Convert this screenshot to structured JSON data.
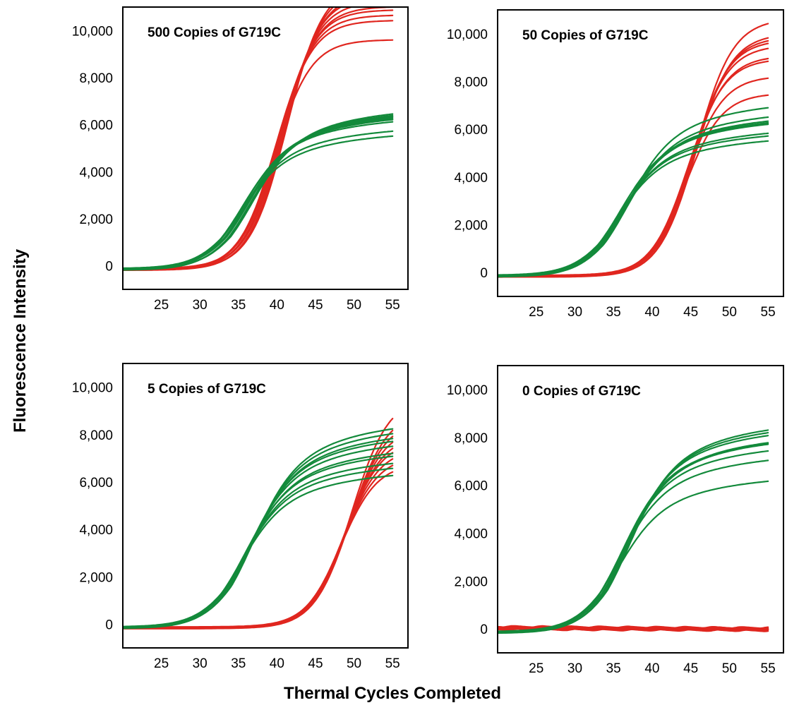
{
  "figure": {
    "ylabel": "Fluorescence Intensity",
    "xlabel": "Thermal Cycles Completed"
  },
  "colors": {
    "mutant": "#e0261f",
    "control": "#138a3b"
  },
  "chart_data": [
    {
      "type": "line",
      "title": "500 Copies of G719C",
      "xlim": [
        20,
        57
      ],
      "ylim": [
        -1000,
        11000
      ],
      "xticks": [
        "25",
        "30",
        "35",
        "40",
        "45",
        "50",
        "55"
      ],
      "yticks": [
        "0",
        "2,000",
        "4,000",
        "6,000",
        "8,000",
        "10,000"
      ],
      "series": [
        {
          "color": "red",
          "midpoint": 40.5,
          "plateaus": [
            9800,
            10600,
            10800,
            11000,
            11200,
            11400,
            11600,
            11800,
            12000,
            12200
          ]
        },
        {
          "color": "green",
          "midpoint": 35.2,
          "plateaus": [
            6000,
            6200,
            6600,
            6700,
            6750,
            6800,
            6850,
            6900,
            6950,
            7000
          ]
        }
      ]
    },
    {
      "type": "line",
      "title": "50 Copies of G719C",
      "xlim": [
        20,
        57
      ],
      "ylim": [
        -1000,
        11000
      ],
      "xticks": [
        "25",
        "30",
        "35",
        "40",
        "45",
        "50",
        "55"
      ],
      "yticks": [
        "0",
        "2,000",
        "4,000",
        "6,000",
        "8,000",
        "10,000"
      ],
      "series": [
        {
          "color": "red",
          "midpoint": 45.0,
          "plateaus": [
            7700,
            8400,
            9100,
            9200,
            9700,
            9900,
            10000,
            10200,
            10800
          ]
        },
        {
          "color": "green",
          "midpoint": 35.3,
          "plateaus": [
            6000,
            6200,
            6300,
            6700,
            6750,
            6800,
            6850,
            7100,
            7500
          ]
        }
      ]
    },
    {
      "type": "line",
      "title": "5 Copies of G719C",
      "xlim": [
        20,
        57
      ],
      "ylim": [
        -1000,
        11000
      ],
      "xticks": [
        "25",
        "30",
        "35",
        "40",
        "45",
        "50",
        "55"
      ],
      "yticks": [
        "0",
        "2,000",
        "4,000",
        "6,000",
        "8,000",
        "10,000"
      ],
      "series": [
        {
          "color": "red",
          "midpoint": 49.0,
          "plateaus": [
            7000,
            7300,
            7600,
            7900,
            8200,
            8500,
            8800,
            9200,
            9800
          ]
        },
        {
          "color": "green",
          "midpoint": 35.3,
          "plateaus": [
            6800,
            7100,
            7300,
            7600,
            7800,
            8100,
            8300,
            8500,
            8700,
            8900
          ]
        }
      ]
    },
    {
      "type": "line",
      "title": "0 Copies of G719C",
      "xlim": [
        20,
        57
      ],
      "ylim": [
        -1000,
        11000
      ],
      "xticks": [
        "25",
        "30",
        "35",
        "40",
        "45",
        "50",
        "55"
      ],
      "yticks": [
        "0",
        "2,000",
        "4,000",
        "6,000",
        "8,000",
        "10,000"
      ],
      "series": [
        {
          "color": "red",
          "midpoint": null,
          "plateaus": [
            0,
            0,
            0,
            0,
            0,
            0,
            0,
            0,
            0
          ]
        },
        {
          "color": "green",
          "midpoint": 35.5,
          "plateaus": [
            6700,
            7600,
            8000,
            8300,
            8350,
            8400,
            8700,
            8900,
            9000
          ]
        }
      ]
    }
  ]
}
